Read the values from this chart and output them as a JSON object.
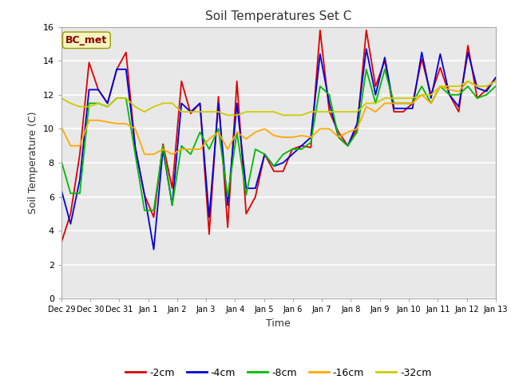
{
  "title": "Soil Temperatures Set C",
  "xlabel": "Time",
  "ylabel": "Soil Temperature (C)",
  "ylim": [
    0,
    16
  ],
  "yticks": [
    0,
    2,
    4,
    6,
    8,
    10,
    12,
    14,
    16
  ],
  "annotation_text": "BC_met",
  "background_color": "#e8e8e8",
  "fig_background": "#ffffff",
  "legend_entries": [
    "-2cm",
    "-4cm",
    "-8cm",
    "-16cm",
    "-32cm"
  ],
  "line_colors": [
    "#dd0000",
    "#0000dd",
    "#00bb00",
    "#ffaa00",
    "#cccc00"
  ],
  "x_tick_labels": [
    "Dec 29",
    "Dec 30",
    "Dec 31",
    "Jan 1",
    "Jan 2",
    "Jan 3",
    "Jan 4",
    "Jan 5",
    "Jan 6",
    "Jan 7",
    "Jan 8",
    "Jan 9",
    "Jan 10",
    "Jan 11",
    "Jan 12",
    "Jan 13"
  ],
  "series": {
    "neg2cm": [
      3.3,
      5.0,
      8.5,
      13.9,
      12.3,
      11.5,
      13.5,
      14.5,
      8.9,
      6.1,
      4.8,
      9.1,
      6.5,
      12.8,
      10.9,
      11.5,
      3.8,
      11.9,
      4.2,
      12.8,
      5.0,
      6.0,
      8.5,
      7.5,
      7.5,
      8.8,
      9.0,
      8.9,
      15.8,
      11.0,
      9.8,
      9.0,
      10.0,
      15.8,
      12.5,
      14.0,
      11.0,
      11.0,
      11.5,
      14.1,
      12.0,
      13.6,
      12.0,
      11.0,
      14.9,
      11.8,
      12.3,
      13.0
    ],
    "neg4cm": [
      6.4,
      4.4,
      7.0,
      12.3,
      12.3,
      11.5,
      13.5,
      13.5,
      8.9,
      6.1,
      2.9,
      8.8,
      5.5,
      11.5,
      11.0,
      11.5,
      4.8,
      11.5,
      5.5,
      11.5,
      6.5,
      6.5,
      8.5,
      7.8,
      8.0,
      8.5,
      9.0,
      9.5,
      14.4,
      11.5,
      9.5,
      9.0,
      10.3,
      14.7,
      12.0,
      14.2,
      11.2,
      11.2,
      11.2,
      14.5,
      11.8,
      14.4,
      12.0,
      11.3,
      14.5,
      12.4,
      12.2,
      13.0
    ],
    "neg8cm": [
      8.1,
      6.2,
      6.2,
      11.5,
      11.5,
      11.3,
      11.8,
      11.8,
      8.5,
      5.2,
      5.2,
      9.0,
      5.5,
      9.0,
      8.5,
      9.8,
      8.8,
      10.0,
      6.0,
      9.8,
      6.1,
      8.8,
      8.5,
      7.8,
      8.5,
      8.8,
      8.8,
      9.2,
      12.5,
      12.0,
      9.5,
      9.0,
      9.8,
      13.5,
      11.5,
      13.5,
      11.5,
      11.5,
      11.5,
      12.5,
      11.5,
      12.5,
      12.0,
      12.0,
      12.5,
      11.8,
      12.0,
      12.5
    ],
    "neg16cm": [
      10.1,
      9.0,
      9.0,
      10.5,
      10.5,
      10.4,
      10.3,
      10.3,
      10.0,
      8.5,
      8.5,
      8.8,
      8.5,
      8.8,
      8.8,
      8.8,
      9.4,
      9.8,
      8.8,
      9.8,
      9.4,
      9.8,
      10.0,
      9.6,
      9.5,
      9.5,
      9.6,
      9.5,
      10.0,
      10.0,
      9.5,
      9.8,
      10.0,
      11.3,
      11.0,
      11.5,
      11.5,
      11.5,
      11.5,
      12.0,
      11.5,
      12.5,
      12.3,
      12.2,
      12.8,
      12.5,
      12.5,
      12.8
    ],
    "neg32cm": [
      11.8,
      11.5,
      11.3,
      11.3,
      11.5,
      11.3,
      11.8,
      11.8,
      11.3,
      11.0,
      11.3,
      11.5,
      11.5,
      11.0,
      11.0,
      11.0,
      11.0,
      11.0,
      10.8,
      10.8,
      11.0,
      11.0,
      11.0,
      11.0,
      10.8,
      10.8,
      10.8,
      11.0,
      11.0,
      11.0,
      11.0,
      11.0,
      11.0,
      11.5,
      11.5,
      11.8,
      11.8,
      11.8,
      11.8,
      12.0,
      12.0,
      12.5,
      12.5,
      12.5,
      12.8,
      12.5,
      12.5,
      12.8
    ]
  }
}
